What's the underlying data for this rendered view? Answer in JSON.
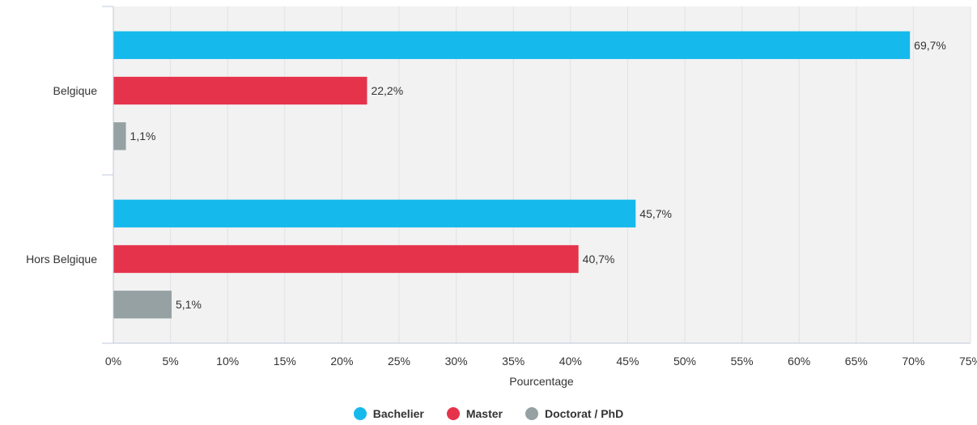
{
  "chart_data": {
    "type": "bar",
    "orientation": "horizontal",
    "categories": [
      "Belgique",
      "Hors Belgique"
    ],
    "series": [
      {
        "name": "Bachelier",
        "values": [
          69.7,
          45.7
        ],
        "labels": [
          "69,7%",
          "45,7%"
        ],
        "color": "#16b9ec"
      },
      {
        "name": "Master",
        "values": [
          22.2,
          40.7
        ],
        "labels": [
          "22,2%",
          "40,7%"
        ],
        "color": "#e6334c"
      },
      {
        "name": "Doctorat / PhD",
        "values": [
          1.1,
          5.1
        ],
        "labels": [
          "1,1%",
          "5,1%"
        ],
        "color": "#95a1a2"
      }
    ],
    "xlabel": "Pourcentage",
    "ylabel": "",
    "xlim": [
      0,
      75
    ],
    "xticks": [
      "0%",
      "5%",
      "10%",
      "15%",
      "20%",
      "25%",
      "30%",
      "35%",
      "40%",
      "45%",
      "50%",
      "55%",
      "60%",
      "65%",
      "70%",
      "75%"
    ],
    "grid": true,
    "legend_position": "bottom-center",
    "plot_background": "#f2f2f2"
  }
}
